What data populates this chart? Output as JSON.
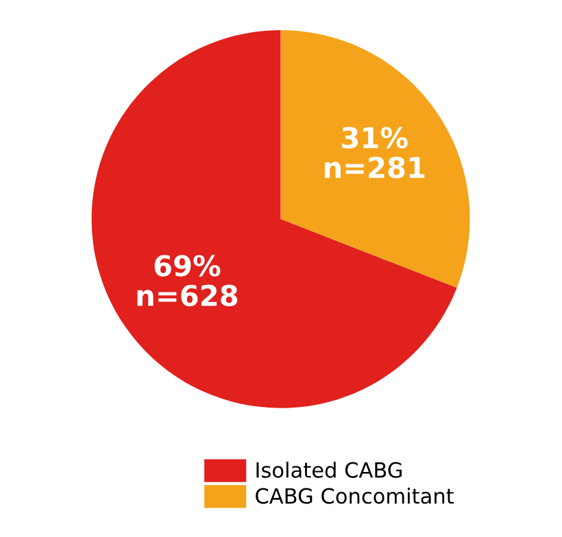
{
  "chart_data": {
    "type": "pie",
    "categories": [
      "Isolated CABG",
      "CABG Concomitant"
    ],
    "values": [
      628,
      281
    ],
    "colors": [
      "#e0211d",
      "#f5a31a"
    ],
    "value_labels": [
      "69%\nn=628",
      "31%\nn=281"
    ],
    "legend": "bottom"
  }
}
